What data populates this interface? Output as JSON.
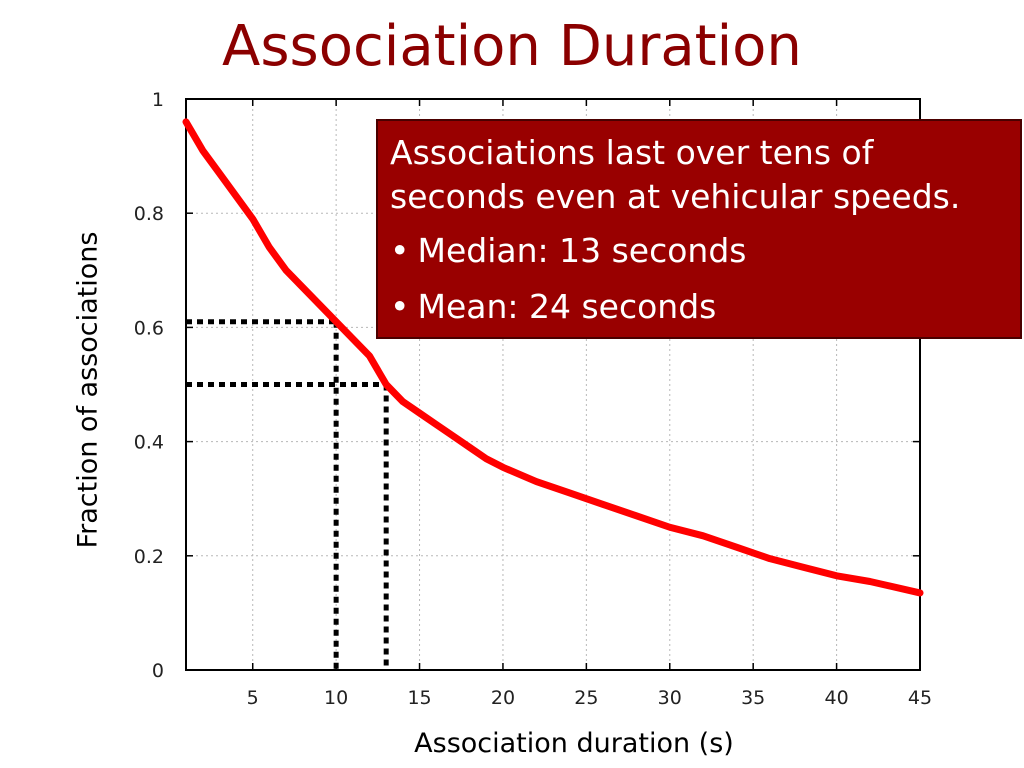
{
  "slide": {
    "title": "Association Duration"
  },
  "callout": {
    "text": "Associations last over tens of seconds even at vehicular speeds.",
    "bullets": [
      {
        "symbol": "•",
        "text": "Median: 13 seconds"
      },
      {
        "symbol": "•",
        "text": "Mean: 24 seconds"
      }
    ],
    "background_color": "#990000"
  },
  "chart_data": {
    "type": "line",
    "xlabel": "Association duration (s)",
    "ylabel": "Fraction of associations",
    "xlim": [
      1,
      45
    ],
    "ylim": [
      0,
      1
    ],
    "x_ticks": [
      5,
      10,
      15,
      20,
      25,
      30,
      35,
      40,
      45
    ],
    "y_ticks": [
      0,
      0.2,
      0.4,
      0.6,
      0.8,
      1
    ],
    "y_tick_labels": [
      "0",
      "0.2",
      "0.4",
      "0.6",
      "0.8",
      "1"
    ],
    "grid": true,
    "series": [
      {
        "color": "#ff0000",
        "points": [
          [
            1,
            0.96
          ],
          [
            2,
            0.91
          ],
          [
            3,
            0.87
          ],
          [
            4,
            0.83
          ],
          [
            5,
            0.79
          ],
          [
            6,
            0.74
          ],
          [
            7,
            0.7
          ],
          [
            8,
            0.67
          ],
          [
            9,
            0.64
          ],
          [
            10,
            0.61
          ],
          [
            11,
            0.58
          ],
          [
            12,
            0.55
          ],
          [
            13,
            0.5
          ],
          [
            14,
            0.47
          ],
          [
            15,
            0.45
          ],
          [
            16,
            0.43
          ],
          [
            17,
            0.41
          ],
          [
            18,
            0.39
          ],
          [
            19,
            0.37
          ],
          [
            20,
            0.355
          ],
          [
            22,
            0.33
          ],
          [
            24,
            0.31
          ],
          [
            26,
            0.29
          ],
          [
            28,
            0.27
          ],
          [
            30,
            0.25
          ],
          [
            32,
            0.235
          ],
          [
            34,
            0.215
          ],
          [
            36,
            0.195
          ],
          [
            38,
            0.18
          ],
          [
            40,
            0.165
          ],
          [
            42,
            0.155
          ],
          [
            45,
            0.135
          ]
        ]
      }
    ],
    "reference_lines": [
      {
        "x": 10,
        "y": 0.61,
        "style": "dotted",
        "color": "#000000"
      },
      {
        "x": 13,
        "y": 0.5,
        "style": "dotted",
        "color": "#000000"
      }
    ]
  }
}
